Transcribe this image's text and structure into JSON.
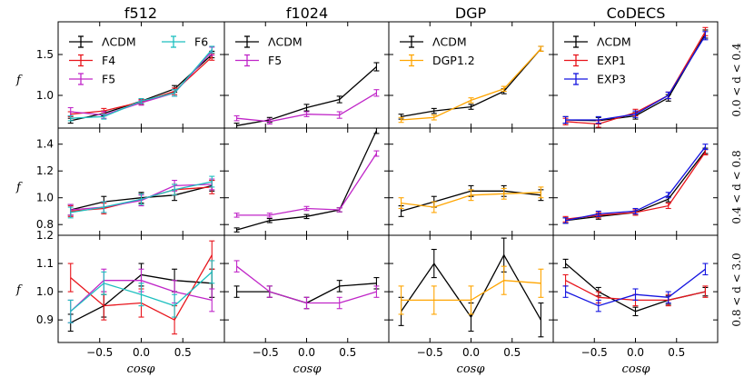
{
  "colors": {
    "LCDM": "#000000",
    "F4": "#e8141b",
    "F5": "#c026c8",
    "F6": "#1dbfbf",
    "DGP1.2": "#ffa500",
    "EXP1": "#e8141b",
    "EXP3": "#1414e0"
  },
  "columns": [
    "f512",
    "f1024",
    "DGP",
    "CoDECS"
  ],
  "row_labels": [
    "0.0 < d < 0.4",
    "0.4 < d < 0.8",
    "0.8 < d < 3.0"
  ],
  "x_label": "cosφ",
  "y_label": "f",
  "chart_data": {
    "type": "line",
    "x": [
      -0.85,
      -0.45,
      0.0,
      0.4,
      0.85
    ],
    "xlim": [
      -1.0,
      1.0
    ],
    "xticks": [
      -0.5,
      0.0,
      0.5
    ],
    "xtick_labels": [
      "−0.5",
      "0.0",
      "0.5"
    ],
    "rows": [
      {
        "ylim": [
          0.6,
          1.9
        ],
        "yticks": [
          1.0,
          1.5
        ],
        "ytick_labels": [
          "1.0",
          "1.5"
        ]
      },
      {
        "ylim": [
          0.72,
          1.52
        ],
        "yticks": [
          0.8,
          1.0,
          1.2,
          1.4
        ],
        "ytick_labels": [
          "0.8",
          "1.0",
          "1.2",
          "1.4"
        ]
      },
      {
        "ylim": [
          0.82,
          1.2
        ],
        "yticks": [
          0.9,
          1.0,
          1.1,
          1.2
        ],
        "ytick_labels": [
          "0.9",
          "1.0",
          "1.1",
          "1.2"
        ]
      }
    ],
    "panels": [
      {
        "row": 0,
        "col": 0,
        "legend": {
          "cols": 2,
          "entries": [
            "ΛCDM",
            "F4",
            "F5",
            "F6"
          ]
        },
        "series": [
          {
            "name": "ΛCDM",
            "key": "LCDM",
            "values": [
              0.69,
              0.78,
              0.93,
              1.08,
              1.5
            ],
            "err": [
              0.03,
              0.03,
              0.03,
              0.04,
              0.04
            ]
          },
          {
            "name": "F4",
            "key": "F4",
            "values": [
              0.77,
              0.81,
              0.92,
              1.05,
              1.47
            ],
            "err": [
              0.03,
              0.03,
              0.03,
              0.04,
              0.04
            ]
          },
          {
            "name": "F5",
            "key": "F5",
            "values": [
              0.8,
              0.76,
              0.91,
              1.03,
              1.54
            ],
            "err": [
              0.05,
              0.04,
              0.03,
              0.04,
              0.05
            ]
          },
          {
            "name": "F6",
            "key": "F6",
            "values": [
              0.72,
              0.74,
              0.93,
              1.03,
              1.56
            ],
            "err": [
              0.03,
              0.03,
              0.03,
              0.04,
              0.04
            ]
          }
        ]
      },
      {
        "row": 0,
        "col": 1,
        "legend": {
          "cols": 1,
          "entries": [
            "ΛCDM",
            "F5"
          ]
        },
        "series": [
          {
            "name": "ΛCDM",
            "key": "LCDM",
            "values": [
              0.63,
              0.7,
              0.85,
              0.95,
              1.35
            ],
            "err": [
              0.03,
              0.03,
              0.04,
              0.04,
              0.05
            ]
          },
          {
            "name": "F5",
            "key": "F5",
            "values": [
              0.72,
              0.68,
              0.77,
              0.76,
              1.03
            ],
            "err": [
              0.03,
              0.03,
              0.03,
              0.04,
              0.04
            ]
          }
        ]
      },
      {
        "row": 0,
        "col": 2,
        "legend": {
          "cols": 1,
          "entries": [
            "ΛCDM",
            "DGP1.2"
          ]
        },
        "series": [
          {
            "name": "ΛCDM",
            "key": "LCDM",
            "values": [
              0.74,
              0.81,
              0.86,
              1.05,
              1.57
            ],
            "err": [
              0.03,
              0.03,
              0.03,
              0.03,
              0.03
            ]
          },
          {
            "name": "DGP1.2",
            "key": "DGP1.2",
            "values": [
              0.7,
              0.73,
              0.94,
              1.08,
              1.57
            ],
            "err": [
              0.03,
              0.03,
              0.03,
              0.03,
              0.03
            ]
          }
        ]
      },
      {
        "row": 0,
        "col": 3,
        "legend": {
          "cols": 1,
          "entries": [
            "ΛCDM",
            "EXP1",
            "EXP3"
          ]
        },
        "series": [
          {
            "name": "ΛCDM",
            "key": "LCDM",
            "values": [
              0.7,
              0.69,
              0.75,
              0.97,
              1.75
            ],
            "err": [
              0.04,
              0.04,
              0.04,
              0.04,
              0.05
            ]
          },
          {
            "name": "EXP1",
            "key": "EXP1",
            "values": [
              0.68,
              0.65,
              0.79,
              1.0,
              1.78
            ],
            "err": [
              0.04,
              0.04,
              0.04,
              0.04,
              0.05
            ]
          },
          {
            "name": "EXP3",
            "key": "EXP3",
            "values": [
              0.7,
              0.7,
              0.77,
              1.0,
              1.73
            ],
            "err": [
              0.04,
              0.04,
              0.04,
              0.04,
              0.05
            ]
          }
        ]
      },
      {
        "row": 1,
        "col": 0,
        "series": [
          {
            "name": "ΛCDM",
            "key": "LCDM",
            "values": [
              0.91,
              0.97,
              1.0,
              1.02,
              1.09
            ],
            "err": [
              0.04,
              0.04,
              0.04,
              0.04,
              0.04
            ]
          },
          {
            "name": "F4",
            "key": "F4",
            "values": [
              0.9,
              0.92,
              0.99,
              1.06,
              1.08
            ],
            "err": [
              0.04,
              0.04,
              0.04,
              0.04,
              0.05
            ]
          },
          {
            "name": "F5",
            "key": "F5",
            "values": [
              0.91,
              0.93,
              0.98,
              1.09,
              1.1
            ],
            "err": [
              0.04,
              0.04,
              0.04,
              0.04,
              0.04
            ]
          },
          {
            "name": "F6",
            "key": "F6",
            "values": [
              0.89,
              0.93,
              0.99,
              1.06,
              1.12
            ],
            "err": [
              0.04,
              0.04,
              0.04,
              0.04,
              0.04
            ]
          }
        ]
      },
      {
        "row": 1,
        "col": 1,
        "series": [
          {
            "name": "ΛCDM",
            "key": "LCDM",
            "values": [
              0.76,
              0.83,
              0.86,
              0.91,
              1.5
            ],
            "err": [
              0.015,
              0.015,
              0.015,
              0.015,
              0.02
            ]
          },
          {
            "name": "F5",
            "key": "F5",
            "values": [
              0.87,
              0.87,
              0.92,
              0.91,
              1.33
            ],
            "err": [
              0.015,
              0.015,
              0.015,
              0.015,
              0.02
            ]
          }
        ]
      },
      {
        "row": 1,
        "col": 2,
        "series": [
          {
            "name": "ΛCDM",
            "key": "LCDM",
            "values": [
              0.9,
              0.97,
              1.05,
              1.05,
              1.02
            ],
            "err": [
              0.04,
              0.04,
              0.04,
              0.04,
              0.04
            ]
          },
          {
            "name": "DGP1.2",
            "key": "DGP1.2",
            "values": [
              0.96,
              0.93,
              1.02,
              1.03,
              1.04
            ],
            "err": [
              0.04,
              0.04,
              0.04,
              0.04,
              0.04
            ]
          }
        ]
      },
      {
        "row": 1,
        "col": 3,
        "series": [
          {
            "name": "ΛCDM",
            "key": "LCDM",
            "values": [
              0.83,
              0.86,
              0.89,
              0.99,
              1.35
            ],
            "err": [
              0.02,
              0.02,
              0.02,
              0.02,
              0.02
            ]
          },
          {
            "name": "EXP1",
            "key": "EXP1",
            "values": [
              0.84,
              0.87,
              0.89,
              0.94,
              1.34
            ],
            "err": [
              0.02,
              0.02,
              0.02,
              0.02,
              0.02
            ]
          },
          {
            "name": "EXP3",
            "key": "EXP3",
            "values": [
              0.83,
              0.88,
              0.9,
              1.02,
              1.38
            ],
            "err": [
              0.02,
              0.02,
              0.02,
              0.02,
              0.02
            ]
          }
        ]
      },
      {
        "row": 2,
        "col": 0,
        "series": [
          {
            "name": "ΛCDM",
            "key": "LCDM",
            "values": [
              0.89,
              0.95,
              1.06,
              1.04,
              1.03
            ],
            "err": [
              0.03,
              0.04,
              0.04,
              0.04,
              0.05
            ]
          },
          {
            "name": "F4",
            "key": "F4",
            "values": [
              1.05,
              0.95,
              0.96,
              0.9,
              1.13
            ],
            "err": [
              0.05,
              0.05,
              0.05,
              0.05,
              0.05
            ]
          },
          {
            "name": "F5",
            "key": "F5",
            "values": [
              0.93,
              1.04,
              1.04,
              1.0,
              0.97
            ],
            "err": [
              0.04,
              0.04,
              0.04,
              0.04,
              0.04
            ]
          },
          {
            "name": "F6",
            "key": "F6",
            "values": [
              0.93,
              1.03,
              0.99,
              0.95,
              1.07
            ],
            "err": [
              0.04,
              0.04,
              0.04,
              0.04,
              0.04
            ]
          }
        ]
      },
      {
        "row": 2,
        "col": 1,
        "series": [
          {
            "name": "ΛCDM",
            "key": "LCDM",
            "values": [
              1.0,
              1.0,
              0.96,
              1.02,
              1.03
            ],
            "err": [
              0.02,
              0.02,
              0.02,
              0.02,
              0.02
            ]
          },
          {
            "name": "F5",
            "key": "F5",
            "values": [
              1.09,
              1.0,
              0.96,
              0.96,
              1.0
            ],
            "err": [
              0.02,
              0.02,
              0.02,
              0.02,
              0.02
            ]
          }
        ]
      },
      {
        "row": 2,
        "col": 2,
        "series": [
          {
            "name": "ΛCDM",
            "key": "LCDM",
            "values": [
              0.93,
              1.1,
              0.91,
              1.13,
              0.9
            ],
            "err": [
              0.05,
              0.05,
              0.05,
              0.06,
              0.06
            ]
          },
          {
            "name": "DGP1.2",
            "key": "DGP1.2",
            "values": [
              0.97,
              0.97,
              0.97,
              1.04,
              1.03
            ],
            "err": [
              0.05,
              0.05,
              0.05,
              0.05,
              0.05
            ]
          }
        ]
      },
      {
        "row": 2,
        "col": 3,
        "series": [
          {
            "name": "ΛCDM",
            "key": "LCDM",
            "values": [
              1.1,
              1.0,
              0.93,
              0.97,
              1.0
            ],
            "err": [
              0.015,
              0.015,
              0.015,
              0.015,
              0.015
            ]
          },
          {
            "name": "EXP1",
            "key": "EXP1",
            "values": [
              1.04,
              0.98,
              0.97,
              0.97,
              1.0
            ],
            "err": [
              0.02,
              0.02,
              0.02,
              0.02,
              0.02
            ]
          },
          {
            "name": "EXP3",
            "key": "EXP3",
            "values": [
              1.0,
              0.95,
              0.99,
              0.98,
              1.08
            ],
            "err": [
              0.02,
              0.02,
              0.02,
              0.02,
              0.02
            ]
          }
        ]
      }
    ]
  }
}
